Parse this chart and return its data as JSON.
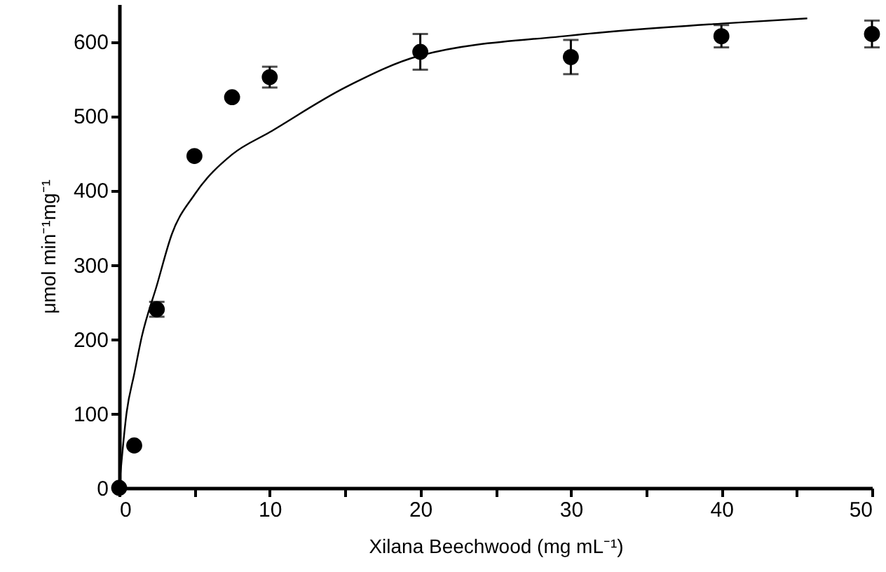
{
  "chart_data": {
    "type": "scatter",
    "xlabel": "Xilana Beechwood (mg mL⁻¹)",
    "ylabel": "μmol min⁻¹mg⁻¹",
    "xlim": [
      0,
      50
    ],
    "ylim": [
      0,
      650
    ],
    "xticks": [
      0,
      {
        "value": 5,
        "label": null
      },
      10,
      {
        "value": 15,
        "label": null
      },
      20,
      {
        "value": 25,
        "label": null
      },
      30,
      {
        "value": 35,
        "label": null
      },
      40,
      {
        "value": 45,
        "label": null
      },
      50
    ],
    "yticks": [
      0,
      100,
      200,
      300,
      400,
      500,
      600
    ],
    "grid": false,
    "series": [
      {
        "marker": "circle",
        "color": "#000000",
        "x": [
          0,
          1,
          2.5,
          5,
          7.5,
          10,
          20,
          30,
          40,
          50
        ],
        "values": [
          0,
          57,
          240,
          446,
          525,
          552,
          586,
          579,
          607,
          610
        ],
        "errors": [
          null,
          null,
          10,
          null,
          null,
          14,
          24,
          23,
          15,
          18
        ]
      },
      {
        "type": "line",
        "marker": "none",
        "color": "#000000",
        "line_style": "solid",
        "x": [
          0,
          0.5,
          1,
          1.5,
          2.5,
          3.5,
          5,
          7.5,
          10,
          15,
          20,
          30,
          40,
          45.7
        ],
        "values": [
          0,
          102,
          153,
          203,
          272,
          341,
          394,
          448,
          478,
          538,
          581,
          608,
          624,
          631
        ]
      }
    ]
  }
}
